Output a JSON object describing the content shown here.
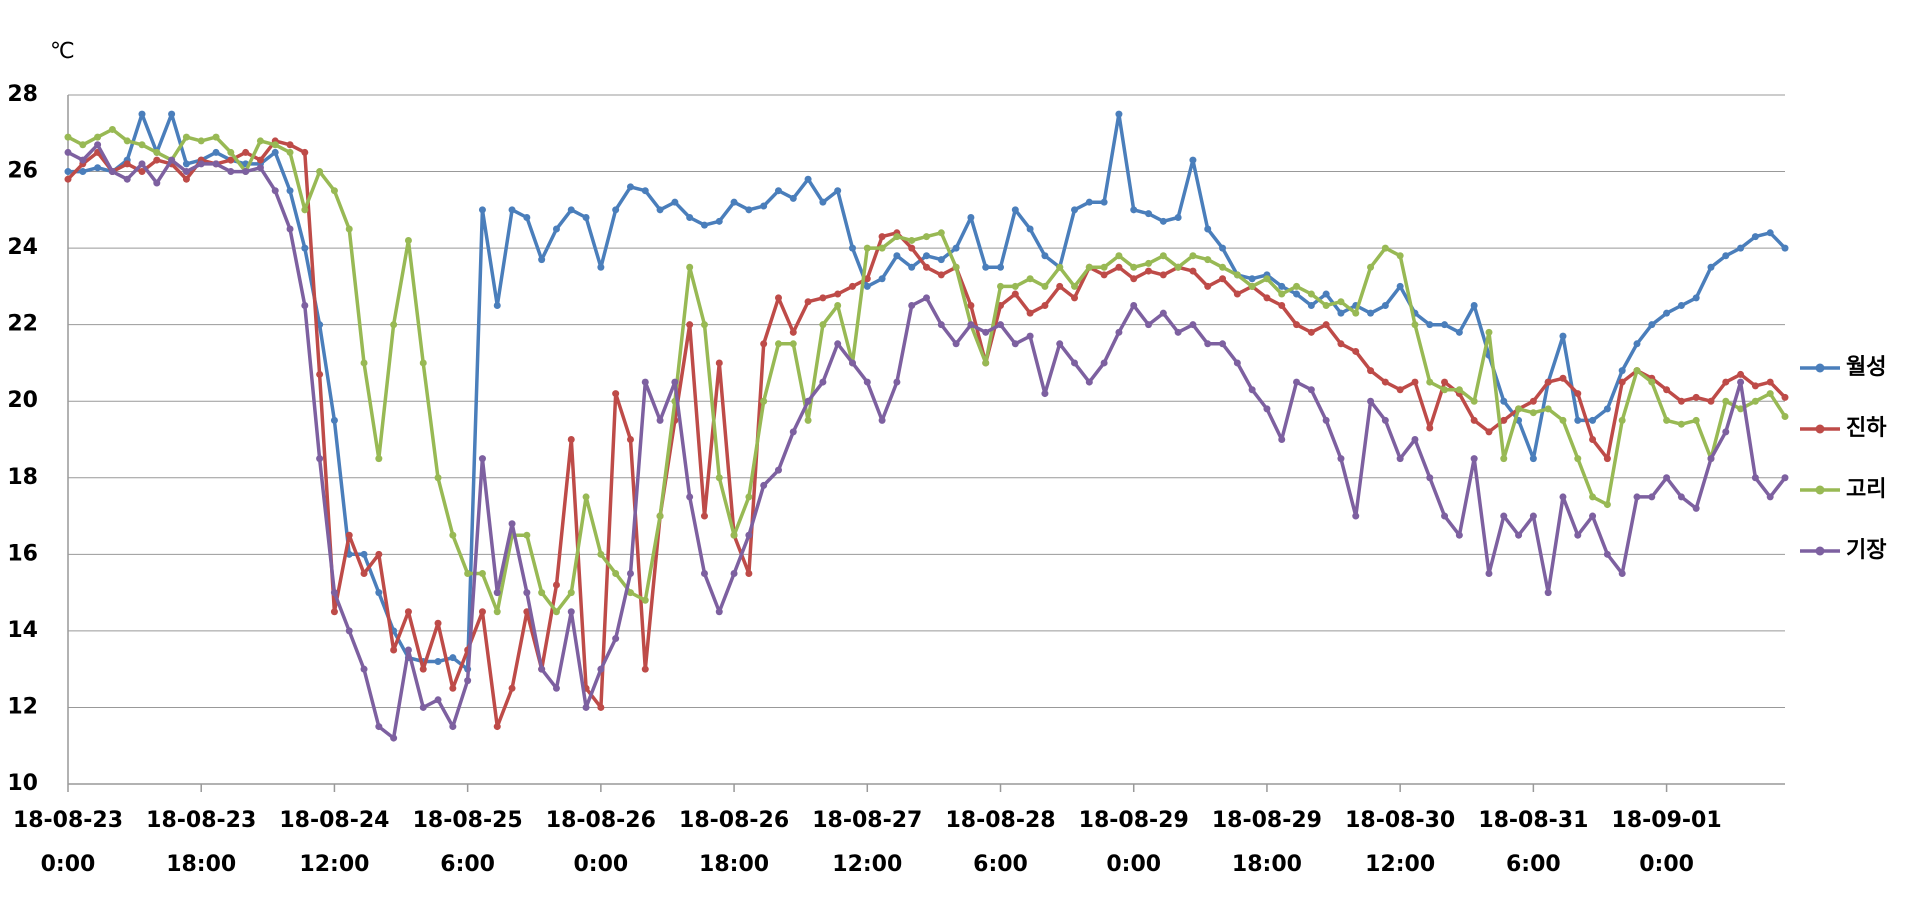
{
  "chart_data": {
    "type": "line",
    "y_unit": "℃",
    "x": [
      0,
      2,
      4,
      6,
      8,
      10,
      12,
      14,
      16,
      18,
      20,
      22,
      24,
      26,
      28,
      30,
      32,
      34,
      36,
      38,
      40,
      42,
      44,
      46,
      48,
      50,
      52,
      54,
      56,
      58,
      60,
      62,
      64,
      66,
      68,
      70,
      72,
      74,
      76,
      78,
      80,
      82,
      84,
      86,
      88,
      90,
      92,
      94,
      96,
      98,
      100,
      102,
      104,
      106,
      108,
      110,
      112,
      114,
      116,
      118,
      120,
      122,
      124,
      126,
      128,
      130,
      132,
      134,
      136,
      138,
      140,
      142,
      144,
      146,
      148,
      150,
      152,
      154,
      156,
      158,
      160,
      162,
      164,
      166,
      168,
      170,
      172,
      174,
      176,
      178,
      180,
      182,
      184,
      186,
      188,
      190,
      192,
      194,
      196,
      198,
      200,
      202,
      204,
      206,
      208,
      210,
      212,
      214,
      216,
      218,
      220,
      222,
      224,
      226,
      228,
      230,
      232
    ],
    "xlim": [
      0,
      232
    ],
    "xticks": [
      {
        "value": 0,
        "label": "18-08-23 0:00"
      },
      {
        "value": 18,
        "label": "18-08-23 18:00"
      },
      {
        "value": 36,
        "label": "18-08-24 12:00"
      },
      {
        "value": 54,
        "label": "18-08-25 6:00"
      },
      {
        "value": 72,
        "label": "18-08-26 0:00"
      },
      {
        "value": 90,
        "label": "18-08-26 18:00"
      },
      {
        "value": 108,
        "label": "18-08-27 12:00"
      },
      {
        "value": 126,
        "label": "18-08-28 6:00"
      },
      {
        "value": 144,
        "label": "18-08-29 0:00"
      },
      {
        "value": 162,
        "label": "18-08-29 18:00"
      },
      {
        "value": 180,
        "label": "18-08-30 12:00"
      },
      {
        "value": 198,
        "label": "18-08-31 6:00"
      },
      {
        "value": 216,
        "label": "18-09-01 0:00"
      }
    ],
    "ylim": [
      10,
      28
    ],
    "yticks": [
      10,
      12,
      14,
      16,
      18,
      20,
      22,
      24,
      26,
      28
    ],
    "grid": true,
    "legend": "right",
    "series": [
      {
        "name": "월성",
        "color": "#4a7ebb",
        "values": [
          26,
          26,
          26.1,
          26,
          26.3,
          27.5,
          26.5,
          27.5,
          26.2,
          26.3,
          26.5,
          26.3,
          26.2,
          26.2,
          26.5,
          25.5,
          24,
          22,
          19.5,
          16,
          16,
          15,
          14,
          13.3,
          13.2,
          13.2,
          13.3,
          13,
          25,
          22.5,
          25,
          24.8,
          23.7,
          24.5,
          25,
          24.8,
          23.5,
          25,
          25.6,
          25.5,
          25,
          25.2,
          24.8,
          24.6,
          24.7,
          25.2,
          25,
          25.1,
          25.5,
          25.3,
          25.8,
          25.2,
          25.5,
          24,
          23,
          23.2,
          23.8,
          23.5,
          23.8,
          23.7,
          24,
          24.8,
          23.5,
          23.5,
          25,
          24.5,
          23.8,
          23.5,
          25,
          25.2,
          25.2,
          27.5,
          25,
          24.9,
          24.7,
          24.8,
          26.3,
          24.5,
          24,
          23.3,
          23.2,
          23.3,
          23,
          22.8,
          22.5,
          22.8,
          22.3,
          22.5,
          22.3,
          22.5,
          23,
          22.3,
          22,
          22,
          21.8,
          22.5,
          21.2,
          20,
          19.5,
          18.5,
          20.5,
          21.7,
          19.5,
          19.5,
          19.8,
          20.8,
          21.5,
          22,
          22.3,
          22.5,
          22.7,
          23.5,
          23.8,
          24,
          24.3,
          24.4,
          24
        ]
      },
      {
        "name": "진하",
        "color": "#be4b48",
        "values": [
          25.8,
          26.2,
          26.5,
          26,
          26.2,
          26,
          26.3,
          26.2,
          25.8,
          26.3,
          26.2,
          26.3,
          26.5,
          26.3,
          26.8,
          26.7,
          26.5,
          20.7,
          14.5,
          16.5,
          15.5,
          16,
          13.5,
          14.5,
          13,
          14.2,
          12.5,
          13.5,
          14.5,
          11.5,
          12.5,
          14.5,
          13,
          15.2,
          19,
          12.5,
          12,
          20.2,
          19,
          13,
          17,
          19.5,
          22,
          17,
          21,
          16.5,
          15.5,
          21.5,
          22.7,
          21.8,
          22.6,
          22.7,
          22.8,
          23,
          23.2,
          24.3,
          24.4,
          24,
          23.5,
          23.3,
          23.5,
          22.5,
          21,
          22.5,
          22.8,
          22.3,
          22.5,
          23,
          22.7,
          23.5,
          23.3,
          23.5,
          23.2,
          23.4,
          23.3,
          23.5,
          23.4,
          23,
          23.2,
          22.8,
          23,
          22.7,
          22.5,
          22,
          21.8,
          22,
          21.5,
          21.3,
          20.8,
          20.5,
          20.3,
          20.5,
          19.3,
          20.5,
          20.2,
          19.5,
          19.2,
          19.5,
          19.8,
          20,
          20.5,
          20.6,
          20.2,
          19,
          18.5,
          20.5,
          20.8,
          20.6,
          20.3,
          20,
          20.1,
          20,
          20.5,
          20.7,
          20.4,
          20.5,
          20.1
        ]
      },
      {
        "name": "고리",
        "color": "#98b954",
        "values": [
          26.9,
          26.7,
          26.9,
          27.1,
          26.8,
          26.7,
          26.5,
          26.3,
          26.9,
          26.8,
          26.9,
          26.5,
          26,
          26.8,
          26.7,
          26.5,
          25,
          26,
          25.5,
          24.5,
          21,
          18.5,
          22,
          24.2,
          21,
          18,
          16.5,
          15.5,
          15.5,
          14.5,
          16.5,
          16.5,
          15,
          14.5,
          15,
          17.5,
          16,
          15.5,
          15,
          14.8,
          17,
          20,
          23.5,
          22,
          18,
          16.5,
          17.5,
          20,
          21.5,
          21.5,
          19.5,
          22,
          22.5,
          21,
          24,
          24,
          24.3,
          24.2,
          24.3,
          24.4,
          23.5,
          22,
          21,
          23,
          23,
          23.2,
          23,
          23.5,
          23,
          23.5,
          23.5,
          23.8,
          23.5,
          23.6,
          23.8,
          23.5,
          23.8,
          23.7,
          23.5,
          23.3,
          23,
          23.2,
          22.8,
          23,
          22.8,
          22.5,
          22.6,
          22.3,
          23.5,
          24,
          23.8,
          22,
          20.5,
          20.3,
          20.3,
          20,
          21.8,
          18.5,
          19.8,
          19.7,
          19.8,
          19.5,
          18.5,
          17.5,
          17.3,
          19.5,
          20.8,
          20.5,
          19.5,
          19.4,
          19.5,
          18.5,
          20,
          19.8,
          20,
          20.2,
          19.6
        ]
      },
      {
        "name": "기장",
        "color": "#7d60a0",
        "values": [
          26.5,
          26.3,
          26.7,
          26,
          25.8,
          26.2,
          25.7,
          26.3,
          26,
          26.2,
          26.2,
          26,
          26,
          26.1,
          25.5,
          24.5,
          22.5,
          18.5,
          15,
          14,
          13,
          11.5,
          11.2,
          13.5,
          12,
          12.2,
          11.5,
          12.7,
          18.5,
          15,
          16.8,
          15,
          13,
          12.5,
          14.5,
          12,
          13,
          13.8,
          15.5,
          20.5,
          19.5,
          20.5,
          17.5,
          15.5,
          14.5,
          15.5,
          16.5,
          17.8,
          18.2,
          19.2,
          20,
          20.5,
          21.5,
          21,
          20.5,
          19.5,
          20.5,
          22.5,
          22.7,
          22,
          21.5,
          22,
          21.8,
          22,
          21.5,
          21.7,
          20.2,
          21.5,
          21,
          20.5,
          21,
          21.8,
          22.5,
          22,
          22.3,
          21.8,
          22,
          21.5,
          21.5,
          21,
          20.3,
          19.8,
          19,
          20.5,
          20.3,
          19.5,
          18.5,
          17,
          20,
          19.5,
          18.5,
          19,
          18,
          17,
          16.5,
          18.5,
          15.5,
          17,
          16.5,
          17,
          15,
          17.5,
          16.5,
          17,
          16,
          15.5,
          17.5,
          17.5,
          18,
          17.5,
          17.2,
          18.5,
          19.2,
          20.5,
          18,
          17.5,
          18
        ]
      }
    ]
  }
}
